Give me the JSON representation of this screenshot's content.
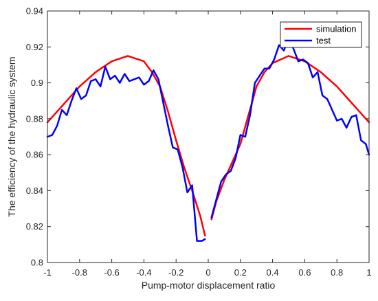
{
  "chart_data": {
    "type": "line",
    "xlabel": "Pump-motor displacement ratio",
    "ylabel": "The efficiency of the hydraulic system",
    "xlim": [
      -1,
      1
    ],
    "ylim": [
      0.8,
      0.94
    ],
    "xticks": [
      -1,
      -0.8,
      -0.6,
      -0.4,
      -0.2,
      0,
      0.2,
      0.4,
      0.6,
      0.8,
      1
    ],
    "xtick_labels": [
      "-1",
      "-0.8",
      "-0.6",
      "-0.4",
      "-0.2",
      "0",
      "0.2",
      "0.4",
      "0.6",
      "0.8",
      "1"
    ],
    "yticks": [
      0.8,
      0.82,
      0.84,
      0.86,
      0.88,
      0.9,
      0.92,
      0.94
    ],
    "ytick_labels": [
      "0.8",
      "0.82",
      "0.84",
      "0.86",
      "0.88",
      "0.9",
      "0.92",
      "0.94"
    ],
    "grid": false,
    "legend_position": "top-right",
    "series": [
      {
        "name": "simulation",
        "color": "#ff0000",
        "segments": [
          {
            "x": [
              -1,
              -0.9,
              -0.8,
              -0.7,
              -0.6,
              -0.5,
              -0.4,
              -0.35,
              -0.3,
              -0.25,
              -0.2,
              -0.15,
              -0.1,
              -0.05,
              -0.02
            ],
            "y": [
              0.878,
              0.888,
              0.898,
              0.906,
              0.912,
              0.915,
              0.912,
              0.906,
              0.898,
              0.884,
              0.868,
              0.853,
              0.84,
              0.826,
              0.815
            ]
          },
          {
            "x": [
              0.02,
              0.05,
              0.1,
              0.15,
              0.2,
              0.25,
              0.3,
              0.35,
              0.4,
              0.5,
              0.6,
              0.7,
              0.8,
              0.9,
              1
            ],
            "y": [
              0.824,
              0.834,
              0.846,
              0.856,
              0.866,
              0.882,
              0.898,
              0.906,
              0.911,
              0.915,
              0.912,
              0.906,
              0.898,
              0.888,
              0.878
            ]
          }
        ]
      },
      {
        "name": "test",
        "color": "#0000ff",
        "segments": [
          {
            "x": [
              -1,
              -0.97,
              -0.94,
              -0.91,
              -0.88,
              -0.85,
              -0.82,
              -0.79,
              -0.76,
              -0.73,
              -0.7,
              -0.67,
              -0.64,
              -0.61,
              -0.58,
              -0.55,
              -0.52,
              -0.49,
              -0.46,
              -0.43,
              -0.4,
              -0.37,
              -0.34,
              -0.31,
              -0.28,
              -0.25,
              -0.22,
              -0.19,
              -0.16,
              -0.13,
              -0.1,
              -0.07,
              -0.04,
              -0.02
            ],
            "y": [
              0.87,
              0.871,
              0.876,
              0.885,
              0.882,
              0.89,
              0.897,
              0.891,
              0.893,
              0.901,
              0.902,
              0.898,
              0.909,
              0.902,
              0.904,
              0.9,
              0.905,
              0.901,
              0.902,
              0.903,
              0.899,
              0.901,
              0.907,
              0.902,
              0.889,
              0.876,
              0.864,
              0.863,
              0.853,
              0.839,
              0.843,
              0.812,
              0.812,
              0.813
            ]
          },
          {
            "x": [
              0.02,
              0.05,
              0.08,
              0.11,
              0.14,
              0.17,
              0.2,
              0.23,
              0.26,
              0.29,
              0.32,
              0.35,
              0.38,
              0.41,
              0.44,
              0.47,
              0.5,
              0.53,
              0.56,
              0.59,
              0.62,
              0.65,
              0.68,
              0.71,
              0.74,
              0.77,
              0.8,
              0.83,
              0.86,
              0.89,
              0.92,
              0.95,
              0.98,
              1
            ],
            "y": [
              0.825,
              0.835,
              0.845,
              0.849,
              0.851,
              0.858,
              0.871,
              0.87,
              0.882,
              0.9,
              0.904,
              0.908,
              0.908,
              0.913,
              0.921,
              0.918,
              0.925,
              0.919,
              0.912,
              0.913,
              0.911,
              0.903,
              0.906,
              0.893,
              0.891,
              0.885,
              0.879,
              0.88,
              0.875,
              0.881,
              0.882,
              0.868,
              0.866,
              0.86
            ]
          }
        ]
      }
    ]
  }
}
